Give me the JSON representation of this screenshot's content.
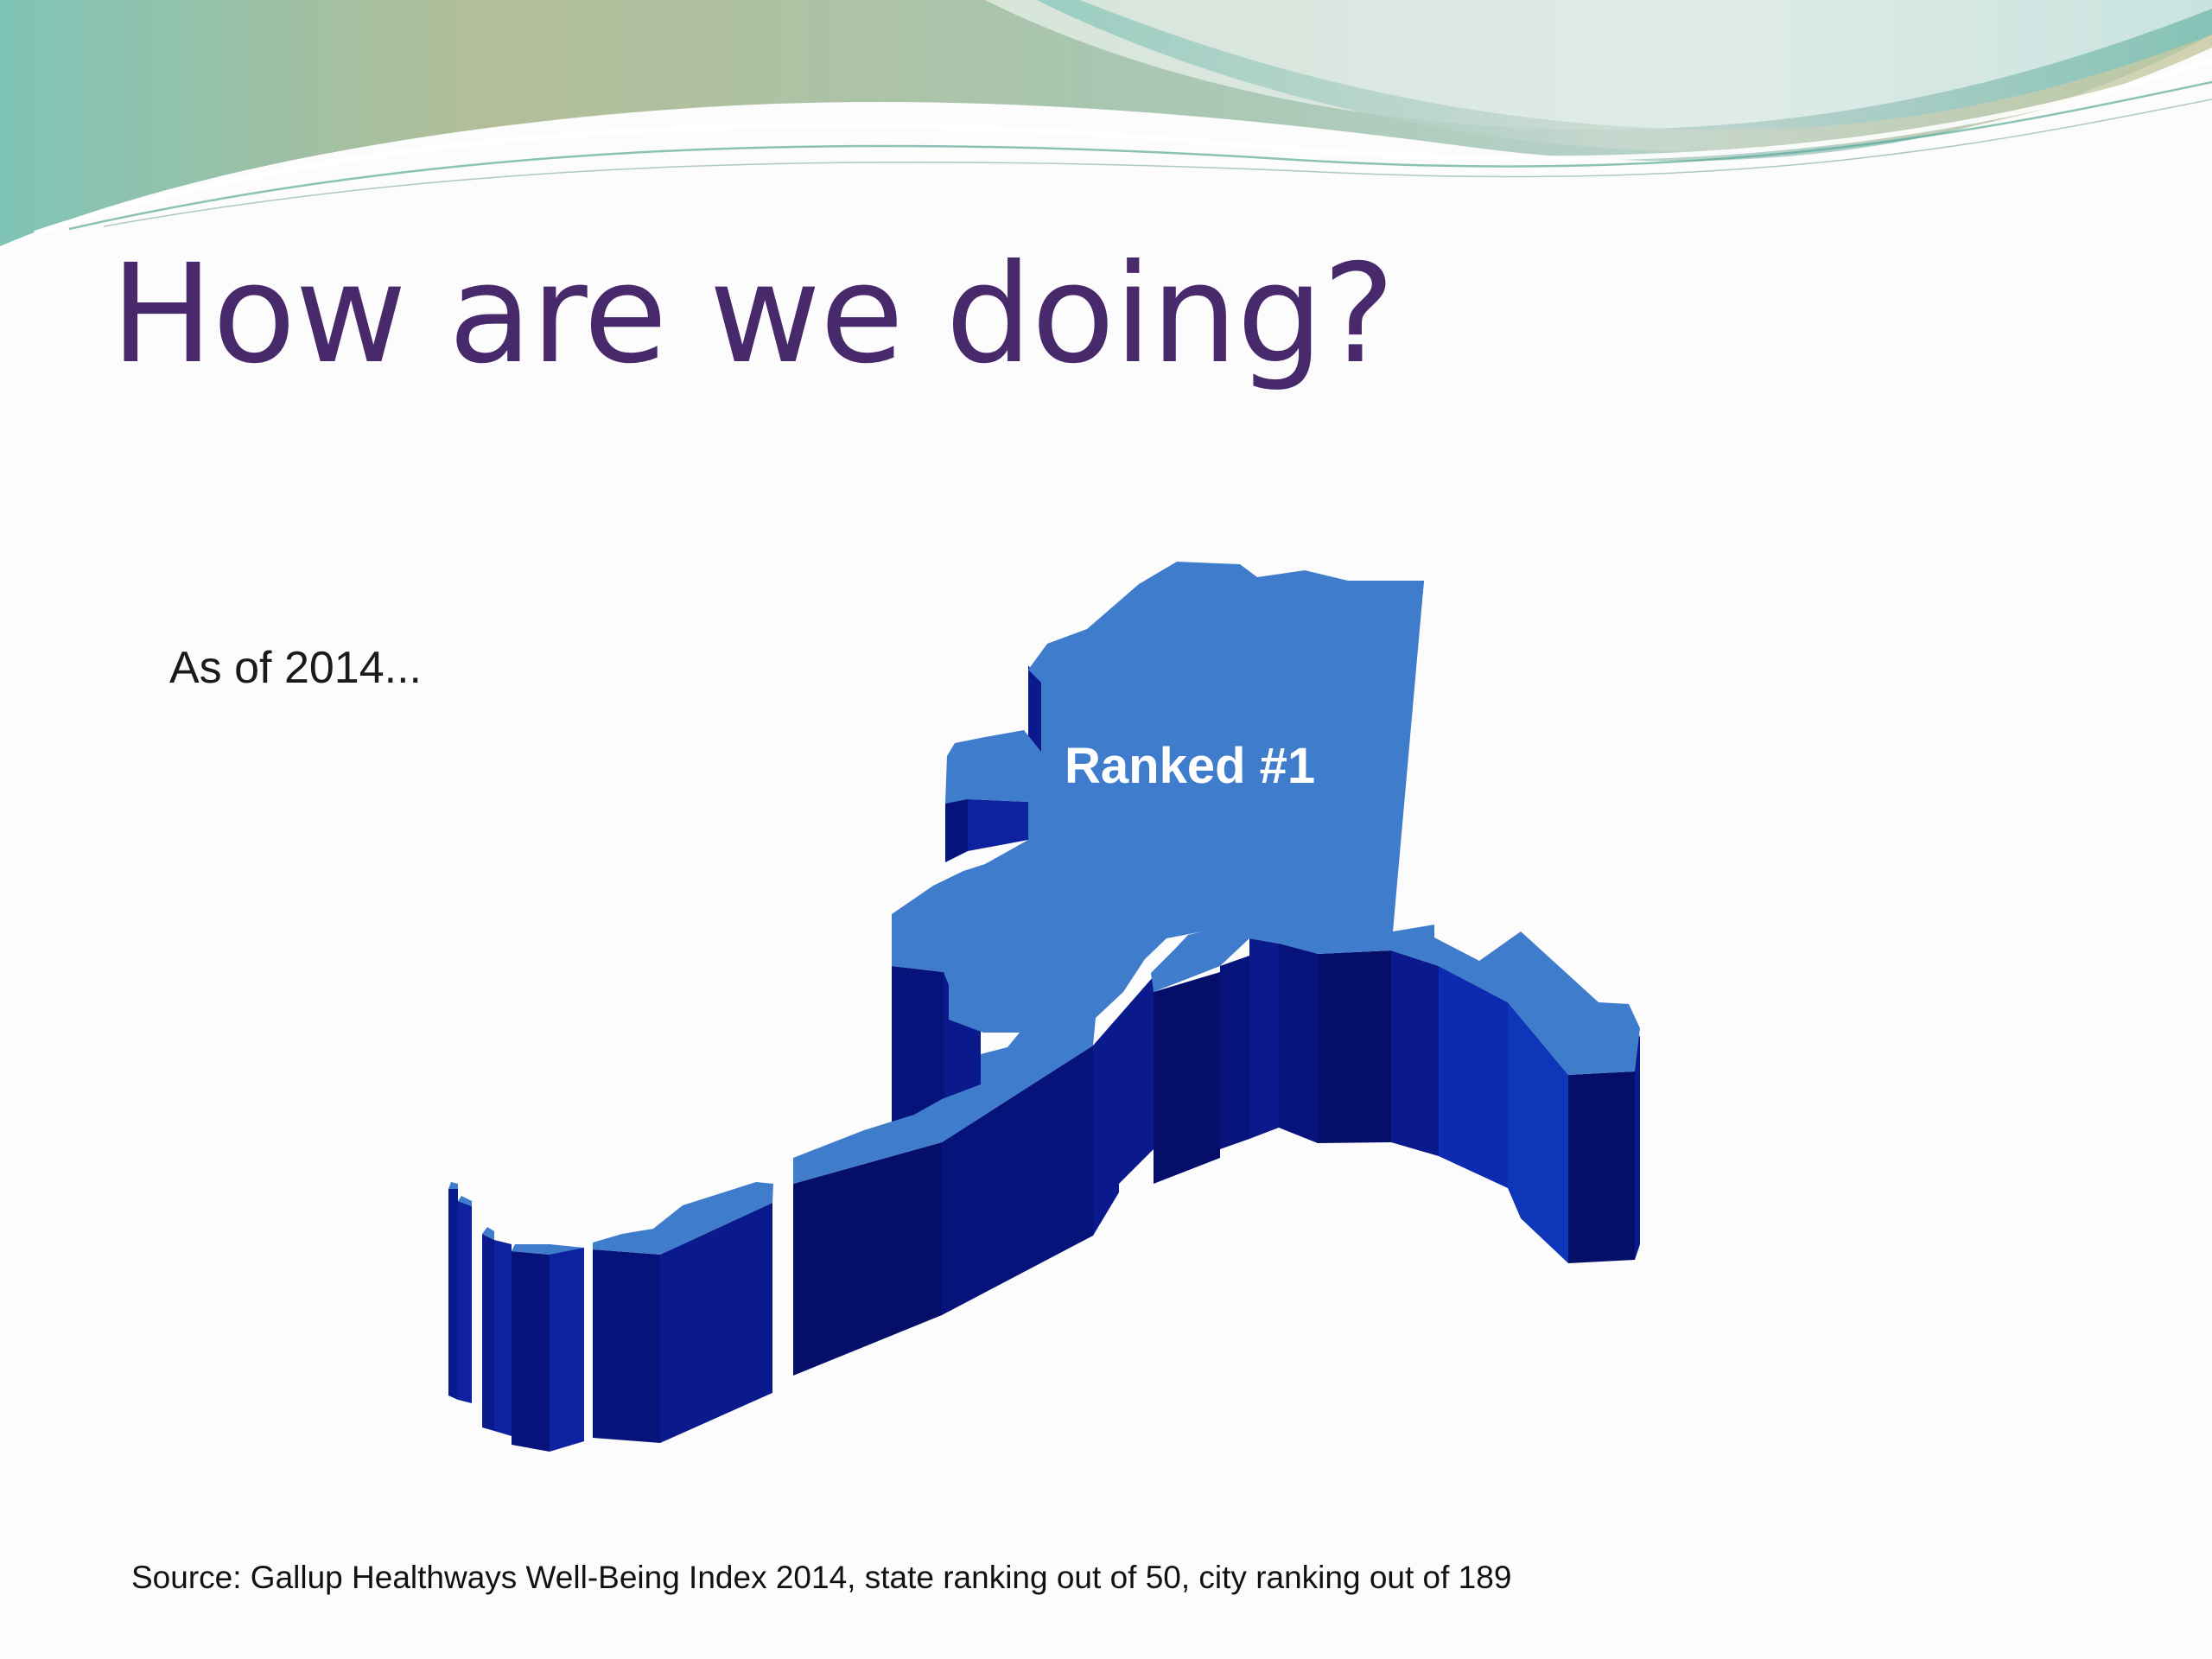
{
  "slide": {
    "title": "How are we doing?",
    "intro": "As of 2014...",
    "map": {
      "icon": "alaska-state-map-3d",
      "label": "Ranked #1",
      "top_color": "#3f7ccc",
      "side_color": "#0d1f8f",
      "shadow_color": "#050f6a"
    },
    "source": "Source: Gallup Healthways Well-Being Index 2014, state ranking out of 50, city ranking out of 189",
    "colors": {
      "title": "#482a6c",
      "wave_teal": "#7fc3b9",
      "wave_olive": "#b4bf94"
    }
  }
}
